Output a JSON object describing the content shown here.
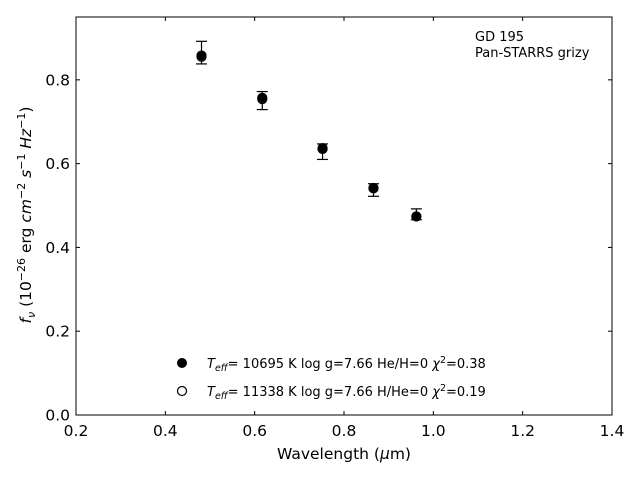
{
  "chart_data": {
    "type": "scatter",
    "annotation": [
      "GD 195",
      "Pan-STARRS grizy"
    ],
    "xlabel": "Wavelength (μm)",
    "ylabel": "f_ν (10^-26 erg cm^-2 s^-1 Hz^-1)",
    "xlim": [
      0.2,
      1.4
    ],
    "ylim": [
      0.0,
      0.95
    ],
    "xticks": [
      "0.2",
      "0.4",
      "0.6",
      "0.8",
      "1.0",
      "1.2",
      "1.4"
    ],
    "yticks": [
      "0.0",
      "0.2",
      "0.4",
      "0.6",
      "0.8"
    ],
    "grid": false,
    "legend_position": "bottom-center",
    "observed": {
      "x": [
        0.481,
        0.617,
        0.752,
        0.866,
        0.962
      ],
      "y": [
        0.862,
        0.751,
        0.63,
        0.538,
        0.478
      ],
      "yerr_low": [
        0.024,
        0.022,
        0.02,
        0.016,
        0.012
      ],
      "yerr_high": [
        0.03,
        0.021,
        0.017,
        0.014,
        0.014
      ]
    },
    "series": [
      {
        "name": "T_eff= 10695 K  log g=7.66  He/H=0  χ²=0.38",
        "marker": "filled-circle",
        "x": [
          0.481,
          0.617,
          0.752,
          0.866,
          0.962
        ],
        "y": [
          0.858,
          0.757,
          0.637,
          0.542,
          0.474
        ]
      },
      {
        "name": "T_eff= 11338 K  log g=7.66  H/He=0  χ²=0.19",
        "marker": "open-circle",
        "x": [
          0.481,
          0.617,
          0.752,
          0.866,
          0.962
        ],
        "y": [
          0.855,
          0.754,
          0.635,
          0.541,
          0.474
        ]
      }
    ]
  }
}
